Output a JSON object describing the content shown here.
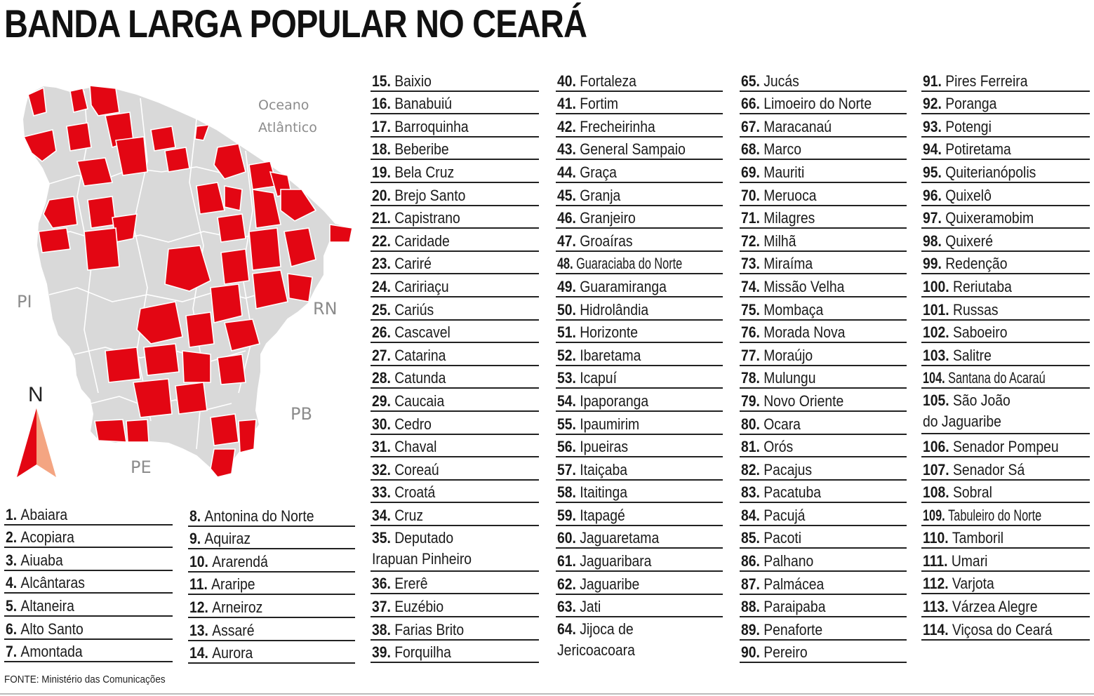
{
  "title": "BANDA LARGA POPULAR NO CEARÁ",
  "source": "FONTE: Ministério das Comunicações",
  "map": {
    "ocean_label": [
      "Oceano",
      "Atlântico"
    ],
    "neighbors": [
      "PI",
      "RN",
      "PB",
      "PE"
    ],
    "compass": "N",
    "colors": {
      "highlight": "#e30613",
      "base": "#d9d9d9",
      "border": "#ffffff",
      "compass_light": "#f4a582"
    }
  },
  "columns": [
    [
      {
        "num": "1.",
        "name": "Abaiara"
      },
      {
        "num": "2.",
        "name": "Acopiara"
      },
      {
        "num": "3.",
        "name": "Aiuaba"
      },
      {
        "num": "4.",
        "name": "Alcântaras"
      },
      {
        "num": "5.",
        "name": "Altaneira"
      },
      {
        "num": "6.",
        "name": "Alto Santo"
      },
      {
        "num": "7.",
        "name": "Amontada"
      }
    ],
    [
      {
        "num": "8.",
        "name": "Antonina do Norte"
      },
      {
        "num": "9.",
        "name": "Aquiraz"
      },
      {
        "num": "10.",
        "name": "Ararendá"
      },
      {
        "num": "11.",
        "name": "Araripe"
      },
      {
        "num": "12.",
        "name": "Arneiroz"
      },
      {
        "num": "13.",
        "name": "Assaré"
      },
      {
        "num": "14.",
        "name": "Aurora"
      }
    ],
    [
      {
        "num": "15.",
        "name": "Baixio"
      },
      {
        "num": "16.",
        "name": "Banabuiú"
      },
      {
        "num": "17.",
        "name": "Barroquinha"
      },
      {
        "num": "18.",
        "name": "Beberibe"
      },
      {
        "num": "19.",
        "name": "Bela Cruz"
      },
      {
        "num": "20.",
        "name": "Brejo Santo"
      },
      {
        "num": "21.",
        "name": "Capistrano"
      },
      {
        "num": "22.",
        "name": "Caridade"
      },
      {
        "num": "23.",
        "name": "Cariré"
      },
      {
        "num": "24.",
        "name": "Caririaçu"
      },
      {
        "num": "25.",
        "name": "Cariús"
      },
      {
        "num": "26.",
        "name": "Cascavel"
      },
      {
        "num": "27.",
        "name": "Catarina"
      },
      {
        "num": "28.",
        "name": "Catunda"
      },
      {
        "num": "29.",
        "name": "Caucaia"
      },
      {
        "num": "30.",
        "name": "Cedro"
      },
      {
        "num": "31.",
        "name": "Chaval"
      },
      {
        "num": "32.",
        "name": "Coreaú"
      },
      {
        "num": "33.",
        "name": "Croatá"
      },
      {
        "num": "34.",
        "name": "Cruz"
      },
      {
        "num": "35.",
        "name": "Deputado",
        "cont": "Irapuan Pinheiro"
      },
      {
        "num": "36.",
        "name": "Ererê"
      },
      {
        "num": "37.",
        "name": "Euzébio"
      },
      {
        "num": "38.",
        "name": "Farias Brito"
      },
      {
        "num": "39.",
        "name": "Forquilha"
      }
    ],
    [
      {
        "num": "40.",
        "name": "Fortaleza"
      },
      {
        "num": "41.",
        "name": "Fortim"
      },
      {
        "num": "42.",
        "name": "Frecheirinha"
      },
      {
        "num": "43.",
        "name": "General Sampaio"
      },
      {
        "num": "44.",
        "name": "Graça"
      },
      {
        "num": "45.",
        "name": "Granja"
      },
      {
        "num": "46.",
        "name": "Granjeiro"
      },
      {
        "num": "47.",
        "name": "Groaíras"
      },
      {
        "num": "48.",
        "name": "Guaraciaba do Norte",
        "narrow": true
      },
      {
        "num": "49.",
        "name": "Guaramiranga"
      },
      {
        "num": "50.",
        "name": "Hidrolândia"
      },
      {
        "num": "51.",
        "name": "Horizonte"
      },
      {
        "num": "52.",
        "name": "Ibaretama"
      },
      {
        "num": "53.",
        "name": "Icapuí"
      },
      {
        "num": "54.",
        "name": "Ipaporanga"
      },
      {
        "num": "55.",
        "name": "Ipaumirim"
      },
      {
        "num": "56.",
        "name": "Ipueiras"
      },
      {
        "num": "57.",
        "name": "Itaiçaba"
      },
      {
        "num": "58.",
        "name": "Itaitinga"
      },
      {
        "num": "59.",
        "name": "Itapagé"
      },
      {
        "num": "60.",
        "name": "Jaguaretama"
      },
      {
        "num": "61.",
        "name": "Jaguaribara"
      },
      {
        "num": "62.",
        "name": "Jaguaribe"
      },
      {
        "num": "63.",
        "name": "Jati"
      },
      {
        "num": "64.",
        "name": "Jijoca de",
        "cont": "Jericoacoara",
        "noline": true
      }
    ],
    [
      {
        "num": "65.",
        "name": "Jucás"
      },
      {
        "num": "66.",
        "name": "Limoeiro do Norte"
      },
      {
        "num": "67.",
        "name": "Maracanaú"
      },
      {
        "num": "68.",
        "name": "Marco"
      },
      {
        "num": "69.",
        "name": "Mauriti"
      },
      {
        "num": "70.",
        "name": "Meruoca"
      },
      {
        "num": "71.",
        "name": "Milagres"
      },
      {
        "num": "72.",
        "name": "Milhã"
      },
      {
        "num": "73.",
        "name": "Miraíma"
      },
      {
        "num": "74.",
        "name": "Missão Velha"
      },
      {
        "num": "75.",
        "name": "Mombaça"
      },
      {
        "num": "76.",
        "name": "Morada Nova"
      },
      {
        "num": "77.",
        "name": "Moraújo"
      },
      {
        "num": "78.",
        "name": "Mulungu"
      },
      {
        "num": "79.",
        "name": "Novo Oriente"
      },
      {
        "num": "80.",
        "name": "Ocara"
      },
      {
        "num": "81.",
        "name": "Orós"
      },
      {
        "num": "82.",
        "name": "Pacajus"
      },
      {
        "num": "83.",
        "name": "Pacatuba"
      },
      {
        "num": "84.",
        "name": "Pacujá"
      },
      {
        "num": "85.",
        "name": "Pacoti"
      },
      {
        "num": "86.",
        "name": "Palhano"
      },
      {
        "num": "87.",
        "name": "Palmácea"
      },
      {
        "num": "88.",
        "name": "Paraipaba"
      },
      {
        "num": "89.",
        "name": "Penaforte"
      },
      {
        "num": "90.",
        "name": "Pereiro"
      }
    ],
    [
      {
        "num": "91.",
        "name": "Pires Ferreira"
      },
      {
        "num": "92.",
        "name": "Poranga"
      },
      {
        "num": "93.",
        "name": "Potengi"
      },
      {
        "num": "94.",
        "name": "Potiretama"
      },
      {
        "num": "95.",
        "name": "Quiterianópolis"
      },
      {
        "num": "96.",
        "name": "Quixelô"
      },
      {
        "num": "97.",
        "name": "Quixeramobim"
      },
      {
        "num": "98.",
        "name": "Quixeré"
      },
      {
        "num": "99.",
        "name": "Redenção"
      },
      {
        "num": "100.",
        "name": "Reriutaba"
      },
      {
        "num": "101.",
        "name": "Russas"
      },
      {
        "num": "102.",
        "name": "Saboeiro"
      },
      {
        "num": "103.",
        "name": "Salitre"
      },
      {
        "num": "104.",
        "name": "Santana do Acaraú",
        "narrow": true
      },
      {
        "num": "105.",
        "name": "São João",
        "cont": "do Jaguaribe"
      },
      {
        "num": "106.",
        "name": "Senador Pompeu"
      },
      {
        "num": "107.",
        "name": "Senador Sá"
      },
      {
        "num": "108.",
        "name": "Sobral"
      },
      {
        "num": "109.",
        "name": "Tabuleiro do Norte",
        "narrow": true
      },
      {
        "num": "110.",
        "name": "Tamboril"
      },
      {
        "num": "111.",
        "name": "Umari"
      },
      {
        "num": "112.",
        "name": "Varjota"
      },
      {
        "num": "113.",
        "name": "Várzea Alegre"
      },
      {
        "num": "114.",
        "name": "Viçosa do Ceará"
      }
    ]
  ]
}
